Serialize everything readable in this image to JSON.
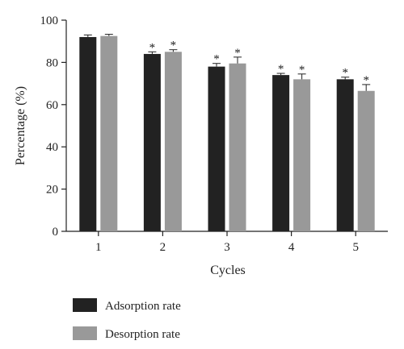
{
  "chart_data": {
    "type": "bar",
    "categories": [
      "1",
      "2",
      "3",
      "4",
      "5"
    ],
    "xlabel": "Cycles",
    "ylabel": "Percentage (%)",
    "ylim": [
      0,
      100
    ],
    "yticks": [
      "0",
      "20",
      "40",
      "60",
      "80",
      "100"
    ],
    "grid": false,
    "legend_position": "bottom-left",
    "series": [
      {
        "name": "Adsorption rate",
        "color": "#222222",
        "values": [
          92,
          84,
          78,
          74,
          72
        ],
        "errors": [
          1,
          1,
          1.5,
          0.8,
          1
        ],
        "significance": [
          "",
          "*",
          "*",
          "*",
          "*"
        ]
      },
      {
        "name": "Desorption rate",
        "color": "#999999",
        "values": [
          92.5,
          85,
          79.5,
          72,
          66.5
        ],
        "errors": [
          0.8,
          1,
          3,
          2.5,
          3
        ],
        "significance": [
          "",
          "*",
          "*",
          "*",
          "*"
        ]
      }
    ]
  }
}
